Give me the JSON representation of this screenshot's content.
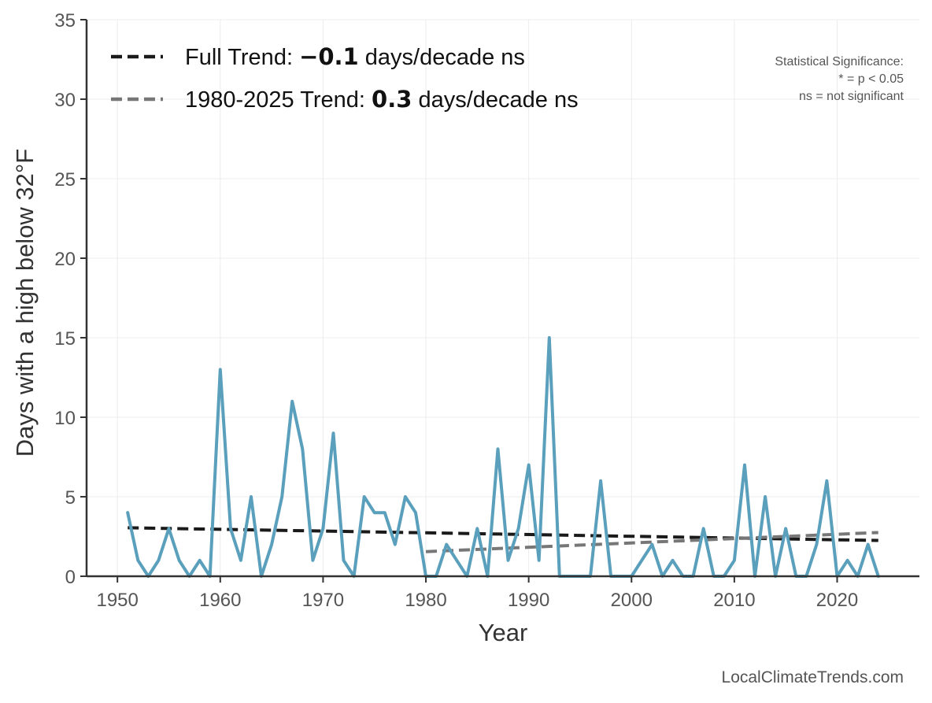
{
  "chart_data": {
    "type": "line",
    "xlabel": "Year",
    "ylabel": "Days with a high below 32°F",
    "xlim": [
      1947,
      2028
    ],
    "ylim": [
      0,
      35
    ],
    "x_ticks": [
      1950,
      1960,
      1970,
      1980,
      1990,
      2000,
      2010,
      2020
    ],
    "y_ticks": [
      0,
      5,
      10,
      15,
      20,
      25,
      30,
      35
    ],
    "grid": true,
    "legend_position": "top-left",
    "series": [
      {
        "kind": "observed",
        "color": "#5a9fbc",
        "x": [
          1951,
          1952,
          1953,
          1954,
          1955,
          1956,
          1957,
          1958,
          1959,
          1960,
          1961,
          1962,
          1963,
          1964,
          1965,
          1966,
          1967,
          1968,
          1969,
          1970,
          1971,
          1972,
          1973,
          1974,
          1975,
          1976,
          1977,
          1978,
          1979,
          1980,
          1981,
          1982,
          1983,
          1984,
          1985,
          1986,
          1987,
          1988,
          1989,
          1990,
          1991,
          1992,
          1993,
          1994,
          1995,
          1996,
          1997,
          1998,
          1999,
          2000,
          2001,
          2002,
          2003,
          2004,
          2005,
          2006,
          2007,
          2008,
          2009,
          2010,
          2011,
          2012,
          2013,
          2014,
          2015,
          2016,
          2017,
          2018,
          2019,
          2020,
          2021,
          2022,
          2023,
          2024
        ],
        "y": [
          4,
          1,
          0,
          1,
          3,
          1,
          0,
          1,
          0,
          13,
          3,
          1,
          5,
          0,
          2,
          5,
          11,
          8,
          1,
          3,
          9,
          1,
          0,
          5,
          4,
          4,
          2,
          5,
          4,
          0,
          0,
          2,
          1,
          0,
          3,
          0,
          8,
          1,
          3,
          7,
          1,
          15,
          0,
          0,
          0,
          0,
          6,
          0,
          0,
          0,
          1,
          2,
          0,
          1,
          0,
          0,
          3,
          0,
          0,
          1,
          7,
          0,
          5,
          0,
          3,
          0,
          0,
          2,
          6,
          0,
          1,
          0,
          2,
          0
        ]
      }
    ],
    "trends": [
      {
        "name_prefix": "Full Trend: ",
        "value": "−0.1",
        "name_suffix": " days/decade ns",
        "color": "#1a1a1a",
        "x": [
          1951,
          2024
        ],
        "y": [
          3.05,
          2.25
        ]
      },
      {
        "name_prefix": "1980-2025 Trend: ",
        "value": "0.3",
        "name_suffix": " days/decade ns",
        "color": "#777777",
        "x": [
          1980,
          2024
        ],
        "y": [
          1.55,
          2.75
        ]
      }
    ],
    "significance_note": [
      "Statistical Significance:",
      "* = p < 0.05",
      "ns = not significant"
    ],
    "credit": "LocalClimateTrends.com"
  }
}
